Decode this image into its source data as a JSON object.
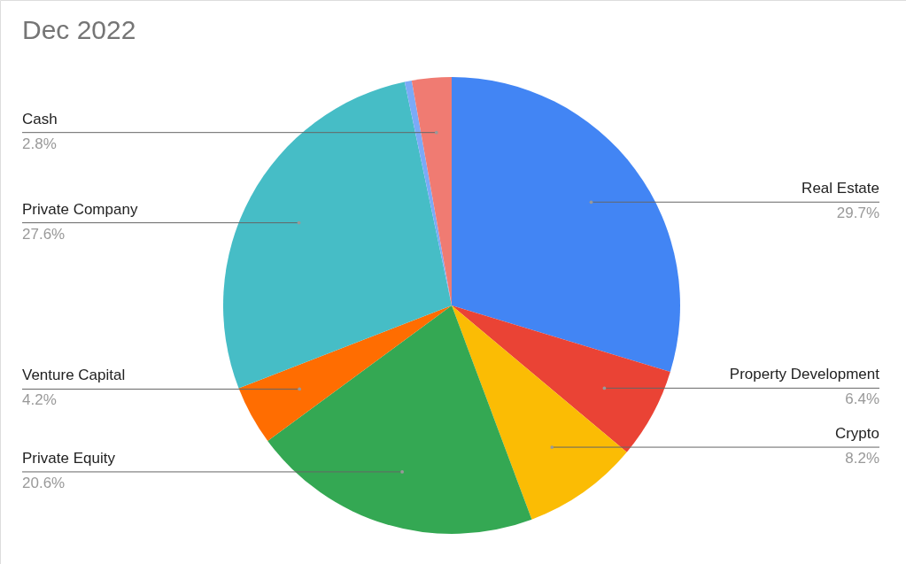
{
  "chart_data": {
    "type": "pie",
    "title": "Dec 2022",
    "categories": [
      "Real Estate",
      "Property Development",
      "Crypto",
      "Private Equity",
      "Venture Capital",
      "Private Company",
      null,
      "Cash"
    ],
    "values": [
      29.7,
      6.4,
      8.2,
      20.6,
      4.2,
      27.6,
      0.5,
      2.8
    ],
    "value_labels": [
      "29.7%",
      "6.4%",
      "8.2%",
      "20.6%",
      "4.2%",
      "27.6%",
      null,
      "2.8%"
    ],
    "colors": [
      "#4285f4",
      "#ea4335",
      "#fbbc04",
      "#34a853",
      "#ff6d01",
      "#46bdc6",
      "#7baaf7",
      "#f07b72"
    ]
  }
}
